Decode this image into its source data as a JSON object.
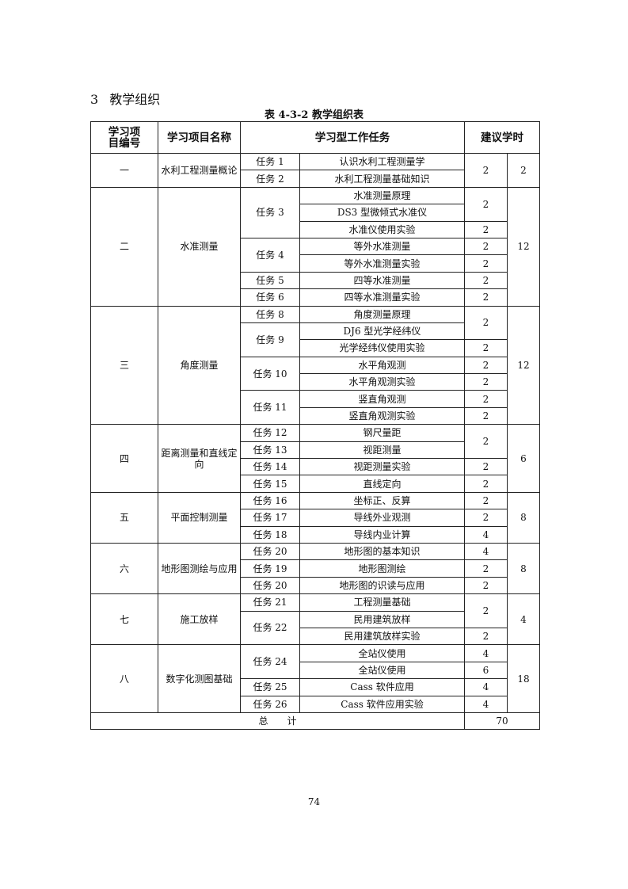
{
  "section": {
    "number": "3",
    "title": "教学组织"
  },
  "caption": "表 4-3-2  教学组织表",
  "table": {
    "headers": [
      "学习项目编号",
      "学习项目名称",
      "学习型工作任务",
      "建议学时"
    ],
    "groups": [
      {
        "num": "一",
        "name": "水利工程测量概论",
        "total": "2",
        "tasks": [
          {
            "label": "任务 1",
            "items": [
              "认识水利工程测量学"
            ]
          },
          {
            "label": "任务 2",
            "items": [
              "水利工程测量基础知识"
            ]
          }
        ],
        "hours": [
          {
            "value": "2",
            "span": 2
          }
        ]
      },
      {
        "num": "二",
        "name": "水准测量",
        "total": "12",
        "tasks": [
          {
            "label": "任务 3",
            "items": [
              "水准测量原理",
              "DS3 型微倾式水准仪",
              "水准仪使用实验"
            ]
          },
          {
            "label": "任务 4",
            "items": [
              "等外水准测量",
              "等外水准测量实验"
            ]
          },
          {
            "label": "任务 5",
            "items": [
              "四等水准测量"
            ]
          },
          {
            "label": "任务 6",
            "items": [
              "四等水准测量实验"
            ]
          }
        ],
        "hours": [
          {
            "value": "2",
            "span": 2
          },
          {
            "value": "2",
            "span": 1
          },
          {
            "value": "2",
            "span": 1
          },
          {
            "value": "2",
            "span": 1
          },
          {
            "value": "2",
            "span": 1
          },
          {
            "value": "2",
            "span": 1
          }
        ]
      },
      {
        "num": "三",
        "name": "角度测量",
        "total": "12",
        "tasks": [
          {
            "label": "任务 8",
            "items": [
              "角度测量原理"
            ]
          },
          {
            "label": "任务 9",
            "items": [
              "DJ6 型光学经纬仪",
              "光学经纬仪使用实验"
            ]
          },
          {
            "label": "任务 10",
            "items": [
              "水平角观测",
              "水平角观测实验"
            ]
          },
          {
            "label": "任务 11",
            "items": [
              "竖直角观测",
              "竖直角观测实验"
            ]
          }
        ],
        "hours": [
          {
            "value": "2",
            "span": 2
          },
          {
            "value": "2",
            "span": 1
          },
          {
            "value": "2",
            "span": 1
          },
          {
            "value": "2",
            "span": 1
          },
          {
            "value": "2",
            "span": 1
          },
          {
            "value": "2",
            "span": 1
          }
        ]
      },
      {
        "num": "四",
        "name": "距离测量和直线定向",
        "total": "6",
        "tasks": [
          {
            "label": "任务 12",
            "items": [
              "钢尺量距"
            ]
          },
          {
            "label": "任务 13",
            "items": [
              "视距测量"
            ]
          },
          {
            "label": "任务 14",
            "items": [
              "视距测量实验"
            ]
          },
          {
            "label": "任务 15",
            "items": [
              "直线定向"
            ]
          }
        ],
        "hours": [
          {
            "value": "2",
            "span": 2
          },
          {
            "value": "2",
            "span": 1
          },
          {
            "value": "2",
            "span": 1
          }
        ]
      },
      {
        "num": "五",
        "name": "平面控制测量",
        "total": "8",
        "tasks": [
          {
            "label": "任务 16",
            "items": [
              "坐标正、反算"
            ]
          },
          {
            "label": "任务 17",
            "items": [
              "导线外业观测"
            ]
          },
          {
            "label": "任务 18",
            "items": [
              "导线内业计算"
            ]
          }
        ],
        "hours": [
          {
            "value": "2",
            "span": 1
          },
          {
            "value": "2",
            "span": 1
          },
          {
            "value": "4",
            "span": 1
          }
        ]
      },
      {
        "num": "六",
        "name": "地形图测绘与应用",
        "total": "8",
        "tasks": [
          {
            "label": "任务 20",
            "items": [
              "地形图的基本知识"
            ]
          },
          {
            "label": "任务 19",
            "items": [
              "地形图测绘"
            ]
          },
          {
            "label": "任务 20",
            "items": [
              "地形图的识读与应用"
            ]
          }
        ],
        "hours": [
          {
            "value": "4",
            "span": 1
          },
          {
            "value": "2",
            "span": 1
          },
          {
            "value": "2",
            "span": 1
          }
        ]
      },
      {
        "num": "七",
        "name": "施工放样",
        "total": "4",
        "tasks": [
          {
            "label": "任务 21",
            "items": [
              "工程测量基础"
            ]
          },
          {
            "label": "任务 22",
            "items": [
              "民用建筑放样",
              "民用建筑放样实验"
            ]
          }
        ],
        "hours": [
          {
            "value": "2",
            "span": 2
          },
          {
            "value": "2",
            "span": 1
          }
        ]
      },
      {
        "num": "八",
        "name": "数字化测图基础",
        "total": "18",
        "tasks": [
          {
            "label": "任务 24",
            "items": [
              "全站仪使用",
              "全站仪使用"
            ]
          },
          {
            "label": "任务 25",
            "items": [
              "Cass 软件应用"
            ]
          },
          {
            "label": "任务 26",
            "items": [
              "Cass 软件应用实验"
            ]
          }
        ],
        "hours": [
          {
            "value": "4",
            "span": 1
          },
          {
            "value": "6",
            "span": 1
          },
          {
            "value": "4",
            "span": 1
          },
          {
            "value": "4",
            "span": 1
          }
        ]
      }
    ],
    "total_label": "总　　计",
    "total_value": "70"
  },
  "page_number": "74"
}
